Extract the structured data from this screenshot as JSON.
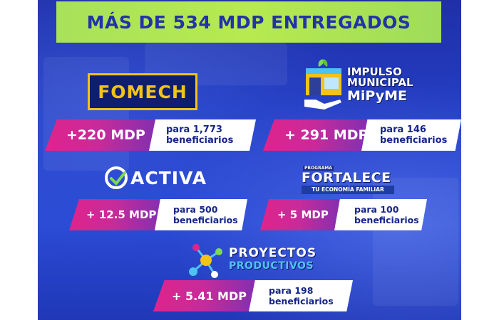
{
  "header": {
    "title": "MÁS DE 534 MDP ENTREGADOS"
  },
  "colors": {
    "banner": "#b7ea4f",
    "title": "#2233a8",
    "amount_gradient_start": "#e0238c",
    "amount_gradient_end": "#7a2fb4",
    "background": "#2540c8",
    "description_text": "#15258a"
  },
  "programs": [
    {
      "logo": {
        "text": "FOMECH"
      },
      "amount": "+220 MDP",
      "desc_line1": "para 1,773",
      "desc_line2": "beneficiarios"
    },
    {
      "logo": {
        "line1": "IMPULSO",
        "line2": "MUNICIPAL",
        "line3": "MiPyME",
        "icon": "storefront-hand-icon"
      },
      "amount": "+ 291 MDP",
      "desc_line1": "para 146",
      "desc_line2": "beneficiarios"
    },
    {
      "logo": {
        "text": "ACTIVA",
        "icon": "checkmark-circle-icon"
      },
      "amount": "+ 12.5 MDP",
      "desc_line1": "para 500",
      "desc_line2": "beneficiarios"
    },
    {
      "logo": {
        "small": "PROGRAMA",
        "main": "FORTALECE",
        "sub": "TU ECONOMÍA FAMILIAR"
      },
      "amount": "+ 5 MDP",
      "desc_line1": "para 100",
      "desc_line2": "beneficiarios"
    },
    {
      "logo": {
        "line1": "PROYECTOS",
        "line2": "PRODUCTIVOS",
        "icon": "molecule-network-icon"
      },
      "amount": "+ 5.41 MDP",
      "desc_line1": "para 198",
      "desc_line2": "beneficiarios"
    }
  ]
}
